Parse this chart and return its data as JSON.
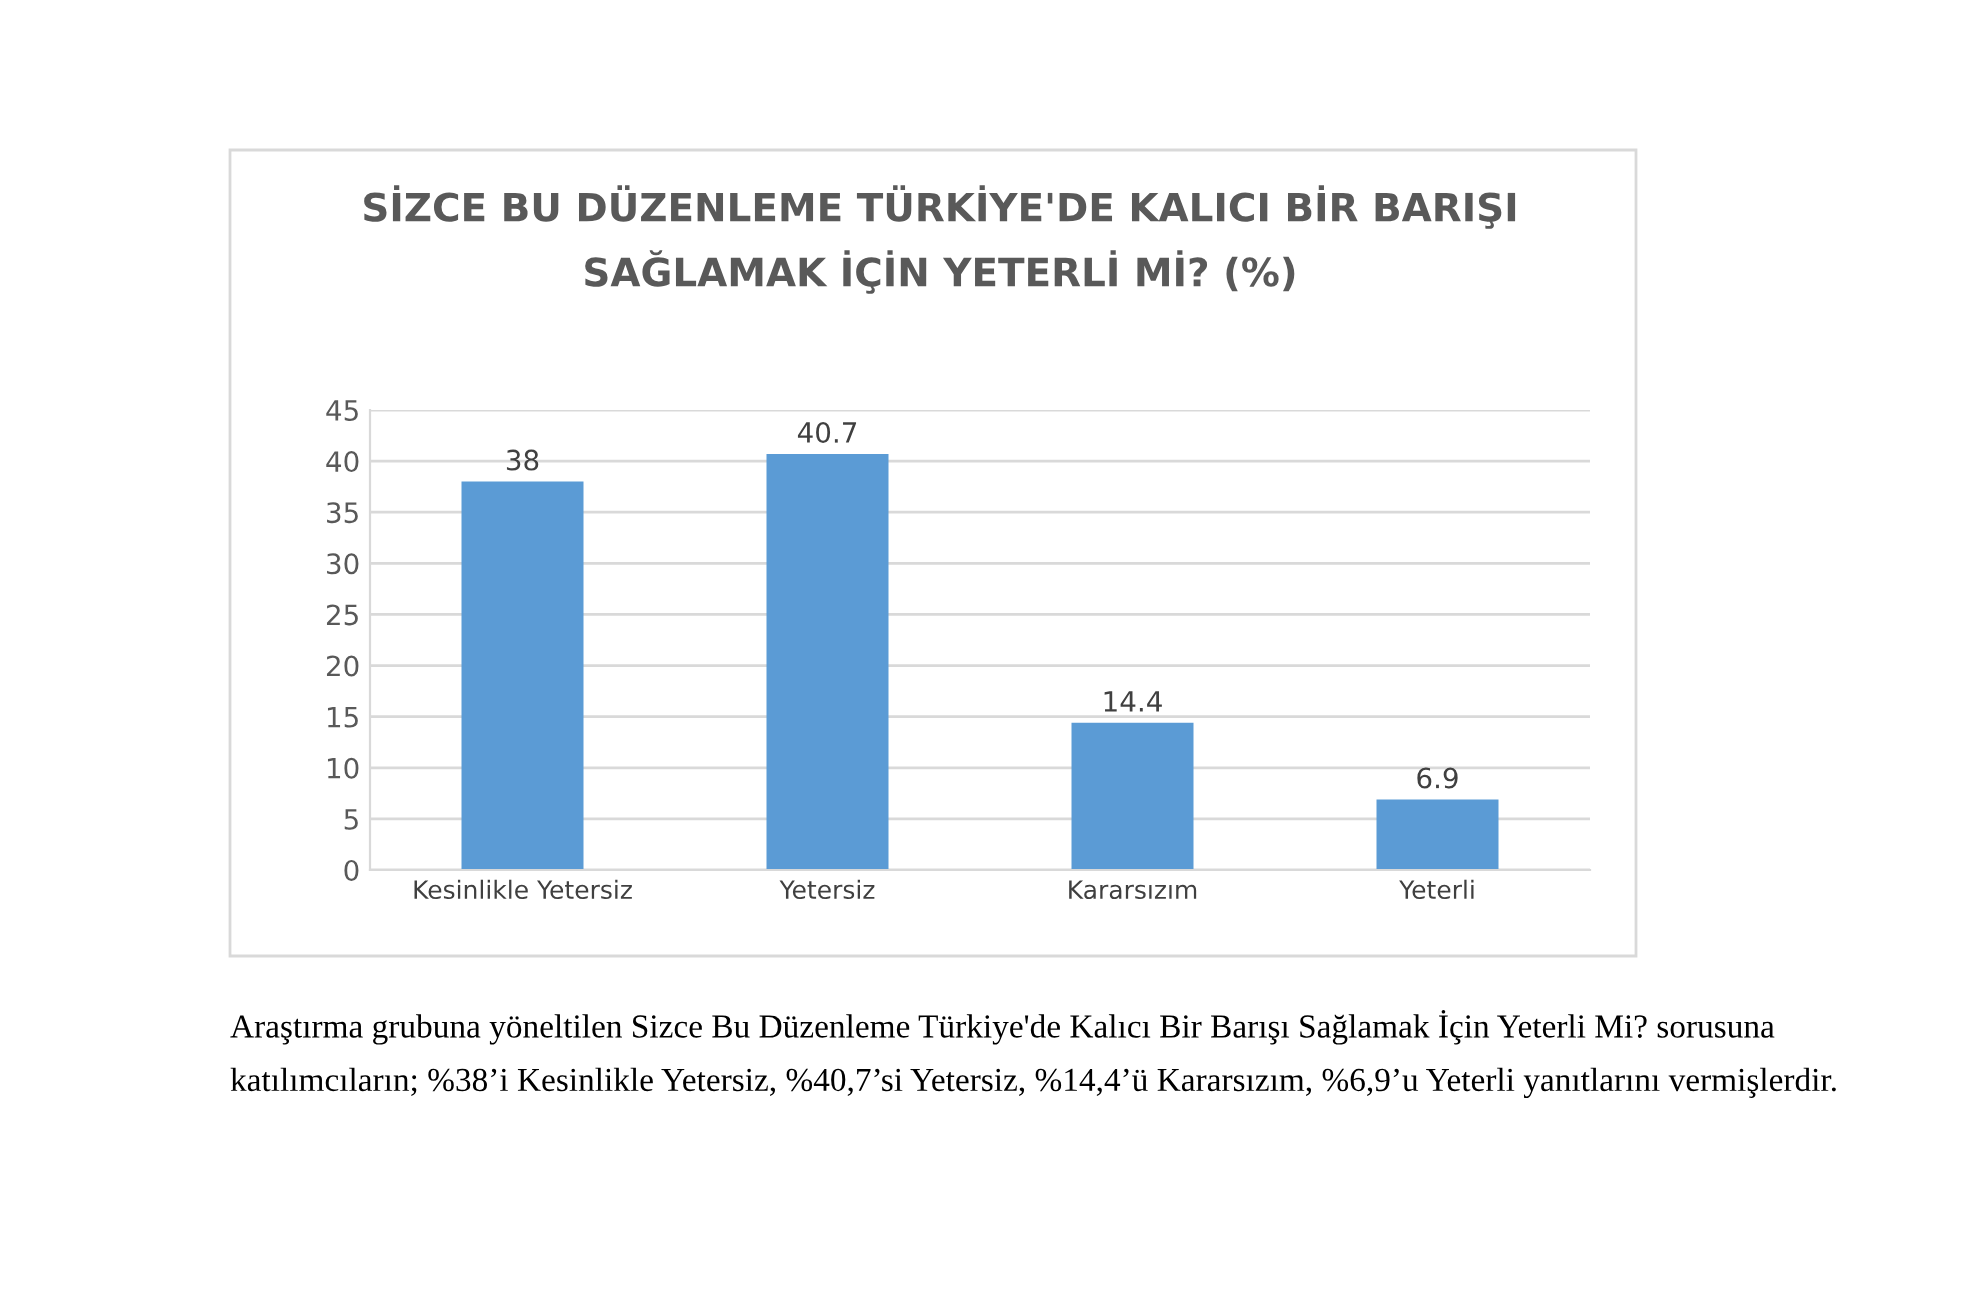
{
  "chart_data": {
    "type": "bar",
    "title": "SİZCE BU DÜZENLEME TÜRKİYE'DE KALICI BİR BARIŞI\nSAĞLAMAK İÇİN YETERLİ Mİ? (%)",
    "categories": [
      "Kesinlikle Yetersiz",
      "Yetersiz",
      "Kararsızım",
      "Yeterli"
    ],
    "values": [
      38,
      40.7,
      14.4,
      6.9
    ],
    "color": "#5b9bd5",
    "ylim": [
      0,
      45
    ],
    "yticks": [
      0,
      5,
      10,
      15,
      20,
      25,
      30,
      35,
      40,
      45
    ],
    "grid": "y",
    "data_labels": true,
    "annotations": [
      "Araştırma grubuna yöneltilen Sizce Bu Düzenleme Türkiye'de Kalıcı Bir Barışı Sağlamak İçin Yeterli Mi? sorusuna katılımcıların; %38’i Kesinlikle Yetersiz, %40,7’si Yetersiz, %14,4’ü Kararsızım, %6,9’u Yeterli yanıtlarını vermişlerdir."
    ]
  }
}
